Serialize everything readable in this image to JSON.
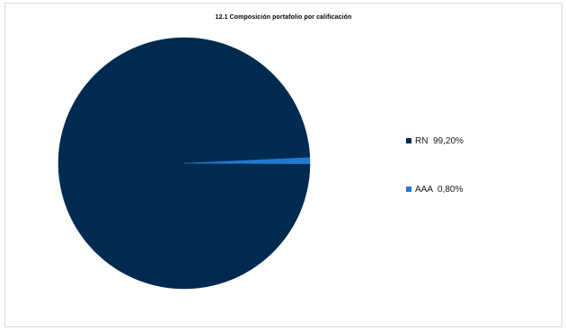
{
  "chart_data": {
    "type": "pie",
    "title": "12.1 Composición portafolio por calificación",
    "slices": [
      {
        "label": "RN",
        "value": 99.2,
        "display": "99,20%",
        "color": "#002a50"
      },
      {
        "label": "AAA",
        "value": 0.8,
        "display": "0,80%",
        "color": "#1f78d1"
      }
    ],
    "legend_position": "right"
  }
}
